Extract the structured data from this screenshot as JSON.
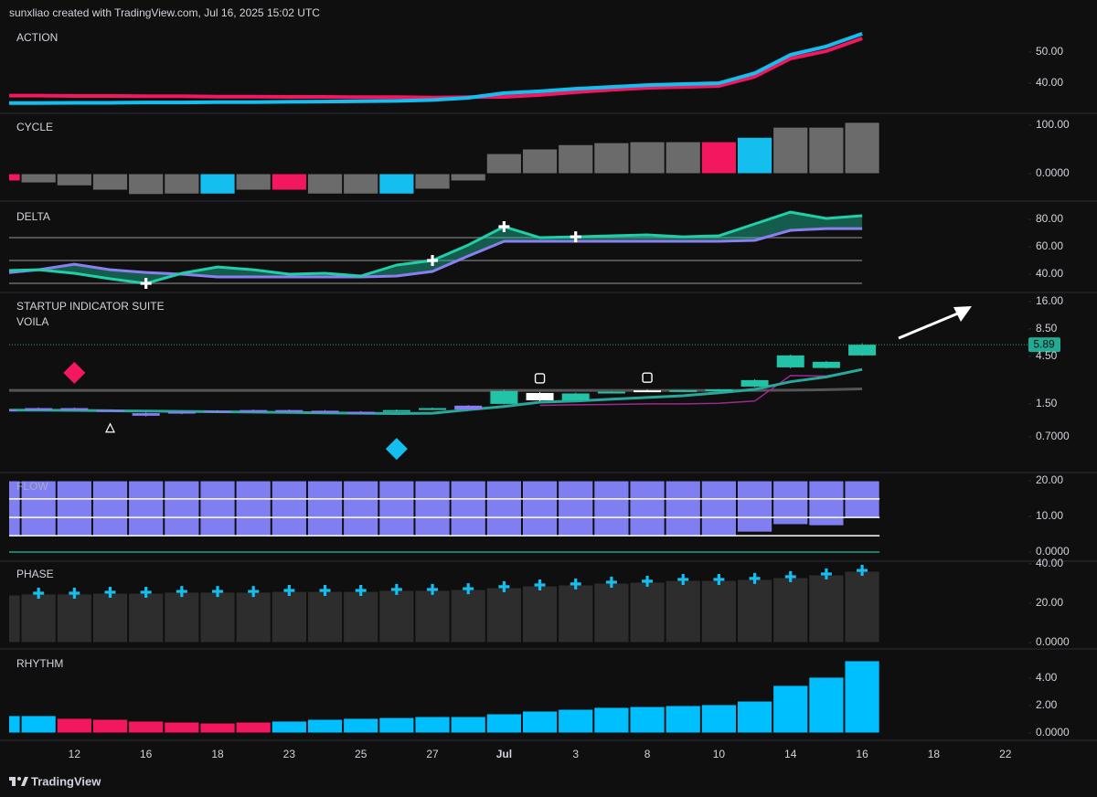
{
  "header": "sunxliao created with TradingView.com, Jul 16, 2025 15:02 UTC",
  "footer": "TradingView",
  "chart_data": [
    {
      "type": "line",
      "title": "ACTION",
      "ylim": [
        30.9,
        58.5
      ],
      "yticks": [
        {
          "value": 50,
          "label": "50.00"
        },
        {
          "value": 40,
          "label": "40.00"
        }
      ],
      "series": [
        {
          "color": "#f2175e",
          "values": [
            36.0,
            36.0,
            35.9,
            35.9,
            35.8,
            35.8,
            35.7,
            35.7,
            35.6,
            35.6,
            35.5,
            35.5,
            35.4,
            35.5,
            35.6,
            36.2,
            37.1,
            37.9,
            38.5,
            38.8,
            39.1,
            42.1,
            47.9,
            50.3,
            54.4,
            null,
            null,
            null,
            null
          ]
        },
        {
          "color": "#14bff0",
          "values": [
            33.6,
            33.6,
            33.7,
            33.7,
            33.8,
            33.8,
            33.9,
            33.9,
            34.0,
            34.1,
            34.2,
            34.3,
            34.6,
            35.3,
            36.8,
            37.4,
            38.2,
            38.8,
            39.4,
            39.7,
            40.0,
            43.2,
            49.1,
            51.8,
            55.9,
            null,
            null,
            null,
            null
          ]
        }
      ]
    },
    {
      "type": "bar",
      "title": "CYCLE",
      "ylim": [
        -52.8,
        120.8
      ],
      "yticks": [
        {
          "value": 100,
          "label": "100.00"
        },
        {
          "value": 0,
          "label": "0.0000"
        }
      ],
      "color": "#6b6b6b",
      "values": [
        -15,
        -19,
        -25,
        -34,
        -43,
        -42,
        -42,
        -34,
        -34,
        -42,
        -42,
        -42,
        -32,
        -15,
        41.5,
        51,
        60,
        64,
        66,
        66,
        66,
        75,
        96,
        96,
        106,
        null,
        null,
        null,
        null
      ],
      "colors": [
        "#f2175e",
        null,
        null,
        null,
        null,
        null,
        "#14bff0",
        null,
        "#f2175e",
        null,
        null,
        "#14bff0",
        null,
        null,
        null,
        null,
        null,
        null,
        null,
        null,
        "#f2175e",
        "#14bff0",
        null,
        null,
        null,
        null,
        null,
        null,
        null
      ]
    },
    {
      "type": "band",
      "title": "DELTA",
      "ylim": [
        28,
        90.7
      ],
      "yticks": [
        {
          "value": 80,
          "label": "80.00"
        },
        {
          "value": 60,
          "label": "60.00"
        },
        {
          "value": 40,
          "label": "40.00"
        }
      ],
      "levels": [
        {
          "value": 66.7,
          "color": "#6a6a6a"
        },
        {
          "value": 50,
          "color": "#6a6a6a"
        },
        {
          "value": 33.3,
          "color": "#6a6a6a"
        }
      ],
      "series": [
        {
          "color": "#1fcfa8",
          "values": [
            42.7,
            43.3,
            40.7,
            36.7,
            33.3,
            40.7,
            45.3,
            43.3,
            40,
            40.7,
            38.7,
            46.7,
            50,
            61.3,
            74.7,
            66.7,
            67.3,
            68,
            68.7,
            67.3,
            68,
            76.7,
            85.3,
            80.7,
            82.7,
            null,
            null,
            null,
            null
          ]
        },
        {
          "color": "#8a7ff0",
          "values": [
            40.7,
            43.3,
            47.3,
            43.3,
            41.3,
            40,
            38,
            38,
            38,
            38,
            38,
            38.7,
            42,
            53.3,
            64,
            64,
            64,
            64,
            64,
            64,
            64,
            64.7,
            72,
            73.3,
            73.3,
            null,
            null,
            null,
            null
          ]
        }
      ],
      "signals": [
        {
          "index": 4,
          "value": 33.3,
          "shape": "plus",
          "color": "#ffffff"
        },
        {
          "index": 12,
          "value": 50,
          "shape": "plus",
          "color": "#ffffff"
        },
        {
          "index": 14,
          "value": 74.7,
          "shape": "plus",
          "color": "#ffffff"
        },
        {
          "index": 16,
          "value": 67.3,
          "shape": "plus",
          "color": "#ffffff"
        }
      ]
    },
    {
      "type": "candlestick",
      "title": "STARTUP INDICATOR SUITE",
      "subtitle": "VOILA",
      "log_scale": true,
      "ylim": [
        0.32,
        18.9
      ],
      "yticks": [
        {
          "value": 16,
          "label": "16.00"
        },
        {
          "value": 8.5,
          "label": "8.50"
        },
        {
          "value": 4.5,
          "label": "4.50"
        },
        {
          "value": 1.5,
          "label": "1.50"
        },
        {
          "value": 0.7,
          "label": "0.7000"
        }
      ],
      "open": [
        1.3,
        1.33,
        1.36,
        1.3,
        1.21,
        1.25,
        1.28,
        1.3,
        1.28,
        1.28,
        1.25,
        1.25,
        1.32,
        1.32,
        1.5,
        1.93,
        1.63,
        1.97,
        2.05,
        2.03,
        2.06,
        2.24,
        3.49,
        3.97,
        4.6,
        null,
        null,
        null,
        null
      ],
      "high": [
        1.34,
        1.38,
        1.38,
        1.32,
        1.24,
        1.27,
        1.3,
        1.32,
        1.32,
        1.3,
        1.27,
        1.32,
        1.38,
        1.46,
        2.08,
        1.98,
        1.95,
        2.02,
        2.08,
        2.08,
        2.12,
        2.65,
        4.7,
        4.05,
        6.1,
        null,
        null,
        null,
        null
      ],
      "low": [
        1.28,
        1.31,
        1.32,
        1.26,
        1.12,
        1.18,
        1.23,
        1.26,
        1.26,
        1.25,
        1.2,
        1.23,
        1.3,
        1.3,
        1.48,
        1.6,
        1.6,
        1.95,
        1.98,
        2.01,
        2.04,
        2.2,
        3.4,
        3.4,
        4.55,
        null,
        null,
        null,
        null
      ],
      "close": [
        1.32,
        1.36,
        1.34,
        1.28,
        1.14,
        1.2,
        1.25,
        1.28,
        1.3,
        1.27,
        1.22,
        1.3,
        1.36,
        1.44,
        2.02,
        1.63,
        1.91,
        1.99,
        2.0,
        2.06,
        2.1,
        2.6,
        4.6,
        3.44,
        5.89,
        null,
        null,
        null,
        null
      ],
      "colors": [
        "#8b7cf6",
        "#8b7cf6",
        "#8b7cf6",
        "#8b7cf6",
        "#8b7cf6",
        "#8b7cf6",
        "#8b7cf6",
        "#8b7cf6",
        "#8b7cf6",
        "#8b7cf6",
        "#8b7cf6",
        "#22c3a6",
        "#22c3a6",
        "#8b7cf6",
        "#22c3a6",
        "#ffffff",
        "#22c3a6",
        "#22c3a6",
        "#ffffff",
        "#22c3a6",
        "#22c3a6",
        "#22c3a6",
        "#22c3a6",
        "#22c3a6",
        "#22c3a6",
        null,
        null,
        null,
        null
      ],
      "series": [
        {
          "color": "#555555",
          "values": [
            2.05,
            2.05,
            2.05,
            2.05,
            2.05,
            2.05,
            2.05,
            2.05,
            2.05,
            2.05,
            2.05,
            2.05,
            2.05,
            2.05,
            2.05,
            2.05,
            2.05,
            2.05,
            2.05,
            2.05,
            2.05,
            2.05,
            2.06,
            2.08,
            2.12,
            null,
            null,
            null,
            null
          ]
        },
        {
          "color": "#9c2a8c",
          "values": [
            null,
            null,
            null,
            null,
            null,
            null,
            null,
            null,
            null,
            null,
            null,
            null,
            null,
            null,
            null,
            1.45,
            1.47,
            1.48,
            1.5,
            1.5,
            1.52,
            1.6,
            2.89,
            2.86,
            3.3,
            null,
            null,
            null,
            null
          ]
        },
        {
          "color": "#2aa79b",
          "values": [
            1.3,
            1.3,
            1.29,
            1.28,
            1.27,
            1.26,
            1.25,
            1.24,
            1.23,
            1.22,
            1.21,
            1.2,
            1.21,
            1.31,
            1.41,
            1.56,
            1.6,
            1.67,
            1.74,
            1.81,
            1.94,
            2.1,
            2.5,
            2.8,
            3.33,
            null,
            null,
            null,
            null
          ]
        }
      ],
      "signals": [
        {
          "index": 2,
          "value": 3.08,
          "shape": "diamond",
          "color": "#f2175e"
        },
        {
          "index": 3,
          "value": 0.85,
          "shape": "triangle",
          "color": "#ffffff"
        },
        {
          "index": 11,
          "value": 0.53,
          "shape": "diamond",
          "color": "#14bff0"
        },
        {
          "index": 15,
          "value": 2.71,
          "shape": "square",
          "color": "#ffffff"
        },
        {
          "index": 18,
          "value": 2.75,
          "shape": "square",
          "color": "#ffffff"
        }
      ]
    },
    {
      "type": "bar",
      "title": "FLOW",
      "ylim": [
        -2.05,
        21.8
      ],
      "base": 20,
      "color": "#7f7ff2",
      "yticks": [
        {
          "value": 20,
          "label": "20.00"
        },
        {
          "value": 10,
          "label": "10.00"
        },
        {
          "value": 0,
          "label": "0.0000"
        }
      ],
      "values": [
        4.6,
        4.6,
        4.6,
        4.6,
        4.6,
        4.6,
        4.6,
        4.6,
        4.6,
        4.6,
        4.6,
        4.6,
        4.6,
        4.6,
        4.6,
        4.6,
        4.6,
        4.6,
        4.6,
        4.6,
        4.6,
        5.6,
        7.7,
        7.4,
        9.5,
        null,
        null,
        null,
        null
      ],
      "levels": [
        {
          "value": 14.9,
          "color": "#ffffff"
        },
        {
          "value": 9.7,
          "color": "#ffffff"
        },
        {
          "value": 4.6,
          "color": "#ffffff"
        },
        {
          "value": 0,
          "color": "#1fa38d"
        }
      ]
    },
    {
      "type": "bar",
      "title": "PHASE",
      "ylim": [
        -2.3,
        40.9
      ],
      "color": "#2d2d2d",
      "yticks": [
        {
          "value": 40,
          "label": "40.00"
        },
        {
          "value": 20,
          "label": "20.00"
        },
        {
          "value": 0,
          "label": "0.0000"
        }
      ],
      "values": [
        24.2,
        24.7,
        24.7,
        25.1,
        25.1,
        25.6,
        25.6,
        25.6,
        26.0,
        26.0,
        26.0,
        26.5,
        26.5,
        27.0,
        27.9,
        28.8,
        29.3,
        30.2,
        30.7,
        31.6,
        31.6,
        32.1,
        33.0,
        34.4,
        36.3,
        null,
        null,
        null,
        null
      ],
      "markers": [
        null,
        25.1,
        25.1,
        25.6,
        25.6,
        26.0,
        26.0,
        26.0,
        26.5,
        26.5,
        26.5,
        27.0,
        27.0,
        27.4,
        28.4,
        29.3,
        29.8,
        30.7,
        31.2,
        32.1,
        32.1,
        32.6,
        33.5,
        34.9,
        36.7,
        null,
        null,
        null,
        null
      ],
      "marker_color": "#14bff0"
    },
    {
      "type": "bar",
      "title": "RHYTHM",
      "ylim": [
        -0.4,
        5.93
      ],
      "color": "#00bfff",
      "yticks": [
        {
          "value": 4,
          "label": "4.00"
        },
        {
          "value": 2,
          "label": "2.00"
        },
        {
          "value": 0,
          "label": "0.0000"
        }
      ],
      "values": [
        1.27,
        1.27,
        1.07,
        1.0,
        0.87,
        0.8,
        0.73,
        0.8,
        0.87,
        1.0,
        1.07,
        1.13,
        1.2,
        1.2,
        1.4,
        1.6,
        1.73,
        1.87,
        1.93,
        2.0,
        2.07,
        2.33,
        3.47,
        4.07,
        5.27,
        null,
        null,
        null,
        null
      ],
      "colors": [
        null,
        null,
        "#f2175e",
        "#f2175e",
        "#f2175e",
        "#f2175e",
        "#f2175e",
        "#f2175e",
        null,
        null,
        null,
        null,
        null,
        null,
        null,
        null,
        null,
        null,
        null,
        null,
        null,
        null,
        null,
        null,
        null,
        null,
        null,
        null,
        null
      ],
      "categories": [
        null,
        null,
        "12",
        null,
        "16",
        null,
        "18",
        null,
        "23",
        null,
        "25",
        null,
        "27",
        null,
        "Jul",
        null,
        "3",
        null,
        "8",
        null,
        "10",
        null,
        "14",
        null,
        "16",
        null,
        "18",
        null,
        "22"
      ]
    }
  ]
}
